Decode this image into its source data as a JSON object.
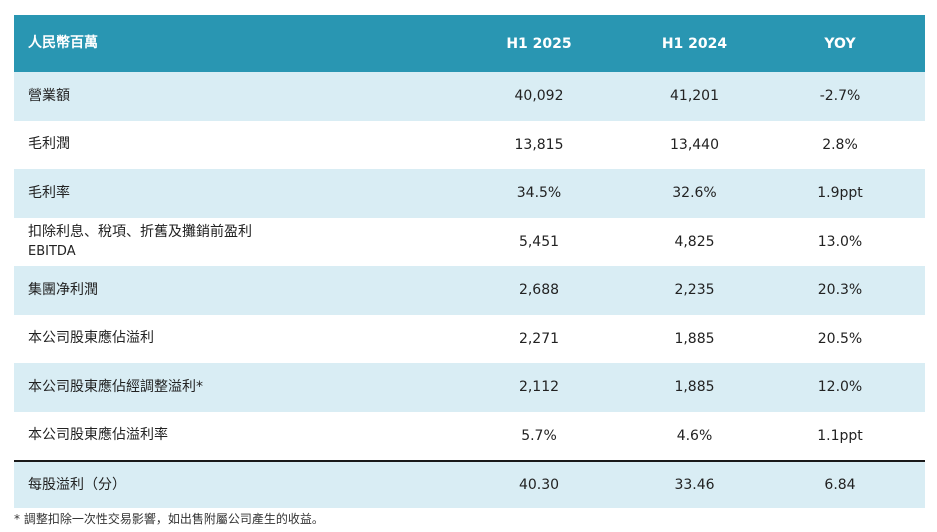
{
  "table": {
    "headers": [
      "人民幣百萬",
      "H1 2025",
      "H1 2024",
      "YOY"
    ],
    "rows": [
      {
        "label": "營業額",
        "sub": "",
        "h1_2025": "40,092",
        "h1_2024": "41,201",
        "yoy": "-2.7%"
      },
      {
        "label": "毛利潤",
        "sub": "",
        "h1_2025": "13,815",
        "h1_2024": "13,440",
        "yoy": "2.8%"
      },
      {
        "label": "毛利率",
        "sub": "",
        "h1_2025": "34.5%",
        "h1_2024": "32.6%",
        "yoy": "1.9ppt"
      },
      {
        "label": "扣除利息、稅項、折舊及攤銷前盈利",
        "sub": "EBITDA",
        "h1_2025": "5,451",
        "h1_2024": "4,825",
        "yoy": "13.0%"
      },
      {
        "label": "集團净利潤",
        "sub": "",
        "h1_2025": "2,688",
        "h1_2024": "2,235",
        "yoy": "20.3%"
      },
      {
        "label": "本公司股東應佔溢利",
        "sub": "",
        "h1_2025": "2,271",
        "h1_2024": "1,885",
        "yoy": "20.5%"
      },
      {
        "label": "本公司股東應佔經調整溢利*",
        "sub": "",
        "h1_2025": "2,112",
        "h1_2024": "1,885",
        "yoy": "12.0%"
      },
      {
        "label": "本公司股東應佔溢利率",
        "sub": "",
        "h1_2025": "5.7%",
        "h1_2024": "4.6%",
        "yoy": "1.1ppt"
      },
      {
        "label": "每股溢利（分）",
        "sub": "",
        "h1_2025": "40.30",
        "h1_2024": "33.46",
        "yoy": "6.84"
      }
    ]
  },
  "footnote": "* 調整扣除一次性交易影響，如出售附屬公司產生的收益。",
  "colors": {
    "header_bg": "#2996b2",
    "shaded_row": "#d9edf4"
  }
}
